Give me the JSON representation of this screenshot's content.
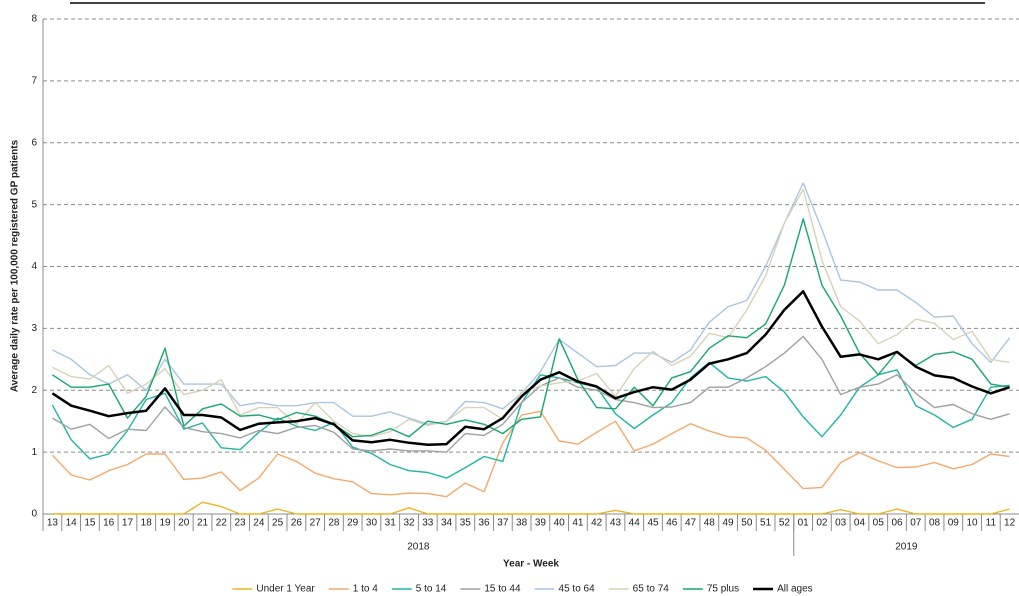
{
  "chart_data": {
    "type": "line",
    "y_label": "Average daily rate per 100,000 registered GP patients",
    "x_label": "Year - Week",
    "categories": [
      "13",
      "14",
      "15",
      "16",
      "17",
      "18",
      "19",
      "20",
      "21",
      "22",
      "23",
      "24",
      "25",
      "26",
      "27",
      "28",
      "29",
      "30",
      "31",
      "32",
      "33",
      "34",
      "35",
      "36",
      "37",
      "38",
      "39",
      "40",
      "41",
      "42",
      "43",
      "44",
      "45",
      "46",
      "47",
      "48",
      "49",
      "50",
      "51",
      "52",
      "01",
      "02",
      "03",
      "04",
      "05",
      "06",
      "07",
      "08",
      "09",
      "10",
      "11",
      "12"
    ],
    "years": [
      "2018",
      "2019"
    ],
    "ylim": [
      0,
      8
    ],
    "yticks": [
      0,
      1,
      2,
      3,
      4,
      5,
      6,
      7,
      8
    ],
    "grid": true,
    "series": [
      {
        "name": "Under 1 Year",
        "color": "#f0b323",
        "values": [
          0,
          0,
          0,
          0,
          0,
          0,
          0,
          0,
          0.19,
          0.12,
          0,
          0,
          0.08,
          0,
          0,
          0,
          0,
          0,
          0,
          0.1,
          0,
          0,
          0,
          0,
          0,
          0,
          0,
          0,
          0,
          0,
          0.06,
          0,
          0,
          0,
          0,
          0,
          0,
          0,
          0,
          0,
          0,
          0,
          0.07,
          0,
          0,
          0.08,
          0,
          0,
          0,
          0,
          0,
          0.08
        ]
      },
      {
        "name": "1 to 4",
        "color": "#f5a96a",
        "values": [
          0.95,
          0.63,
          0.55,
          0.7,
          0.8,
          0.97,
          0.97,
          0.56,
          0.58,
          0.68,
          0.38,
          0.58,
          0.97,
          0.85,
          0.66,
          0.57,
          0.52,
          0.33,
          0.31,
          0.34,
          0.33,
          0.28,
          0.5,
          0.36,
          1.15,
          1.6,
          1.66,
          1.18,
          1.13,
          1.32,
          1.5,
          1.02,
          1.13,
          1.3,
          1.46,
          1.34,
          1.25,
          1.23,
          1.03,
          0.72,
          0.41,
          0.43,
          0.83,
          0.99,
          0.86,
          0.75,
          0.76,
          0.83,
          0.73,
          0.8,
          0.97,
          0.93
        ]
      },
      {
        "name": "5 to 14",
        "color": "#1fb5a5",
        "values": [
          1.76,
          1.2,
          0.89,
          0.97,
          1.35,
          1.85,
          1.95,
          1.37,
          1.47,
          1.07,
          1.04,
          1.32,
          1.55,
          1.42,
          1.35,
          1.48,
          1.08,
          0.98,
          0.8,
          0.7,
          0.67,
          0.58,
          0.75,
          0.93,
          0.85,
          1.8,
          2.25,
          2.2,
          2.12,
          2.05,
          1.62,
          1.38,
          1.6,
          1.8,
          2.2,
          2.45,
          2.2,
          2.15,
          2.22,
          1.97,
          1.57,
          1.25,
          1.6,
          2.05,
          2.25,
          2.33,
          1.75,
          1.6,
          1.4,
          1.53,
          2.05,
          2.08
        ]
      },
      {
        "name": "15 to 44",
        "color": "#a0a0a0",
        "values": [
          1.55,
          1.37,
          1.45,
          1.22,
          1.37,
          1.35,
          1.73,
          1.4,
          1.33,
          1.3,
          1.23,
          1.35,
          1.3,
          1.4,
          1.43,
          1.32,
          1.05,
          1.02,
          1.05,
          1.02,
          1.02,
          1.0,
          1.3,
          1.27,
          1.45,
          1.8,
          2.07,
          2.2,
          2.05,
          2.0,
          1.85,
          1.8,
          1.72,
          1.73,
          1.8,
          2.05,
          2.05,
          2.2,
          2.38,
          2.6,
          2.87,
          2.5,
          1.93,
          2.05,
          2.1,
          2.25,
          1.95,
          1.72,
          1.77,
          1.62,
          1.53,
          1.62
        ]
      },
      {
        "name": "45 to 64",
        "color": "#a9c6e3",
        "values": [
          2.65,
          2.5,
          2.25,
          2.1,
          2.25,
          2.0,
          2.5,
          2.1,
          2.1,
          2.1,
          1.75,
          1.8,
          1.75,
          1.75,
          1.8,
          1.8,
          1.58,
          1.58,
          1.65,
          1.55,
          1.45,
          1.5,
          1.82,
          1.8,
          1.7,
          1.95,
          2.3,
          2.82,
          2.6,
          2.38,
          2.4,
          2.6,
          2.6,
          2.45,
          2.65,
          3.1,
          3.35,
          3.45,
          4.0,
          4.7,
          5.35,
          4.6,
          3.78,
          3.75,
          3.62,
          3.62,
          3.42,
          3.18,
          3.2,
          2.75,
          2.45,
          2.85
        ]
      },
      {
        "name": "65 to 74",
        "color": "#d9d2b8",
        "values": [
          2.37,
          2.22,
          2.18,
          2.4,
          1.95,
          2.1,
          2.35,
          1.93,
          2.0,
          2.17,
          1.6,
          1.72,
          1.72,
          1.45,
          1.8,
          1.5,
          1.3,
          1.25,
          1.33,
          1.53,
          1.43,
          1.5,
          1.72,
          1.72,
          1.53,
          1.97,
          2.07,
          2.12,
          2.15,
          2.27,
          1.9,
          2.35,
          2.63,
          2.4,
          2.55,
          2.92,
          2.85,
          3.3,
          3.85,
          4.7,
          5.25,
          4.1,
          3.35,
          3.12,
          2.75,
          2.9,
          3.15,
          3.08,
          2.82,
          2.95,
          2.5,
          2.45
        ]
      },
      {
        "name": "75 plus",
        "color": "#17a670",
        "values": [
          2.25,
          2.05,
          2.05,
          2.1,
          1.55,
          1.9,
          2.68,
          1.42,
          1.7,
          1.78,
          1.58,
          1.6,
          1.52,
          1.64,
          1.58,
          1.45,
          1.25,
          1.27,
          1.38,
          1.25,
          1.5,
          1.45,
          1.52,
          1.45,
          1.3,
          1.53,
          1.57,
          2.83,
          2.17,
          1.72,
          1.7,
          2.05,
          1.75,
          2.2,
          2.3,
          2.68,
          2.88,
          2.85,
          3.07,
          3.7,
          4.77,
          3.7,
          3.2,
          2.6,
          2.25,
          2.62,
          2.4,
          2.58,
          2.62,
          2.5,
          2.1,
          2.05
        ]
      },
      {
        "name": "All ages",
        "color": "#000000",
        "values": [
          1.95,
          1.75,
          1.67,
          1.58,
          1.63,
          1.67,
          2.03,
          1.6,
          1.6,
          1.56,
          1.36,
          1.46,
          1.48,
          1.5,
          1.55,
          1.45,
          1.19,
          1.16,
          1.2,
          1.15,
          1.12,
          1.13,
          1.41,
          1.37,
          1.55,
          1.9,
          2.17,
          2.29,
          2.14,
          2.06,
          1.87,
          1.97,
          2.05,
          2.01,
          2.17,
          2.43,
          2.5,
          2.6,
          2.9,
          3.3,
          3.6,
          3.03,
          2.54,
          2.58,
          2.5,
          2.62,
          2.38,
          2.24,
          2.2,
          2.06,
          1.95,
          2.05
        ]
      }
    ]
  }
}
